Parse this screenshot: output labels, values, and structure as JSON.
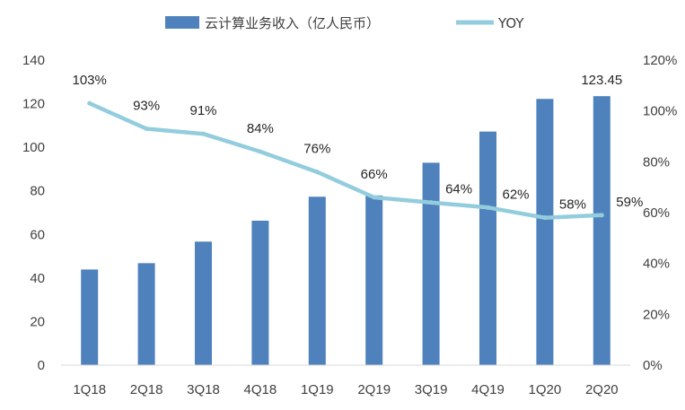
{
  "chart_data": {
    "type": "bar",
    "categories": [
      "1Q18",
      "2Q18",
      "3Q18",
      "4Q18",
      "1Q19",
      "2Q19",
      "3Q19",
      "4Q19",
      "1Q20",
      "2Q20"
    ],
    "series": [
      {
        "name": "云计算业务收入（亿人民币）",
        "type": "bar",
        "axis": "left",
        "color": "#4f81bd",
        "values": [
          43.9,
          46.8,
          56.7,
          66.3,
          77.3,
          77.9,
          92.9,
          107.2,
          122.2,
          123.45
        ],
        "data_labels": {
          "9": "123.45"
        }
      },
      {
        "name": "YOY",
        "type": "line",
        "axis": "right",
        "color": "#93cddd",
        "values": [
          1.03,
          0.93,
          0.91,
          0.84,
          0.76,
          0.66,
          0.64,
          0.62,
          0.58,
          0.59
        ],
        "data_labels": [
          "103%",
          "93%",
          "91%",
          "84%",
          "76%",
          "66%",
          "64%",
          "62%",
          "58%",
          "59%"
        ]
      }
    ],
    "y_left": {
      "min": 0,
      "max": 140,
      "step": 20,
      "ticks": [
        "0",
        "20",
        "40",
        "60",
        "80",
        "100",
        "120",
        "140"
      ]
    },
    "y_right": {
      "min": 0,
      "max": 1.2,
      "step": 0.2,
      "ticks": [
        "0%",
        "20%",
        "40%",
        "60%",
        "80%",
        "100%",
        "120%"
      ]
    },
    "legend_position": "top",
    "grid": false
  }
}
